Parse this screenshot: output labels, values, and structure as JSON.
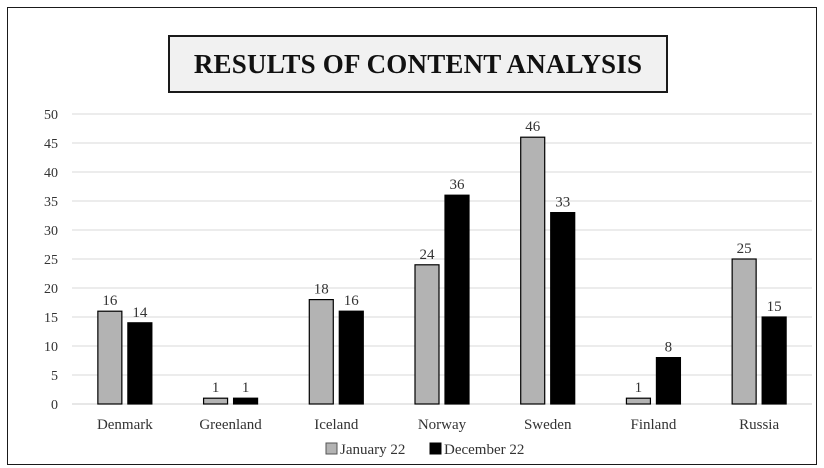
{
  "chart_data": {
    "type": "bar",
    "title": "RESULTS OF CONTENT ANALYSIS",
    "categories": [
      "Denmark",
      "Greenland",
      "Iceland",
      "Norway",
      "Sweden",
      "Finland",
      "Russia"
    ],
    "series": [
      {
        "name": "January 22",
        "values": [
          16,
          1,
          18,
          24,
          46,
          1,
          25
        ],
        "color": "#b3b3b3"
      },
      {
        "name": "December 22",
        "values": [
          14,
          1,
          16,
          36,
          33,
          8,
          15
        ],
        "color": "#000000"
      }
    ],
    "yticks": [
      "0",
      "5",
      "10",
      "15",
      "20",
      "25",
      "30",
      "35",
      "40",
      "45",
      "50"
    ],
    "ylim": [
      0,
      50
    ],
    "grid": true,
    "legend_position": "bottom",
    "data_labels": true
  }
}
